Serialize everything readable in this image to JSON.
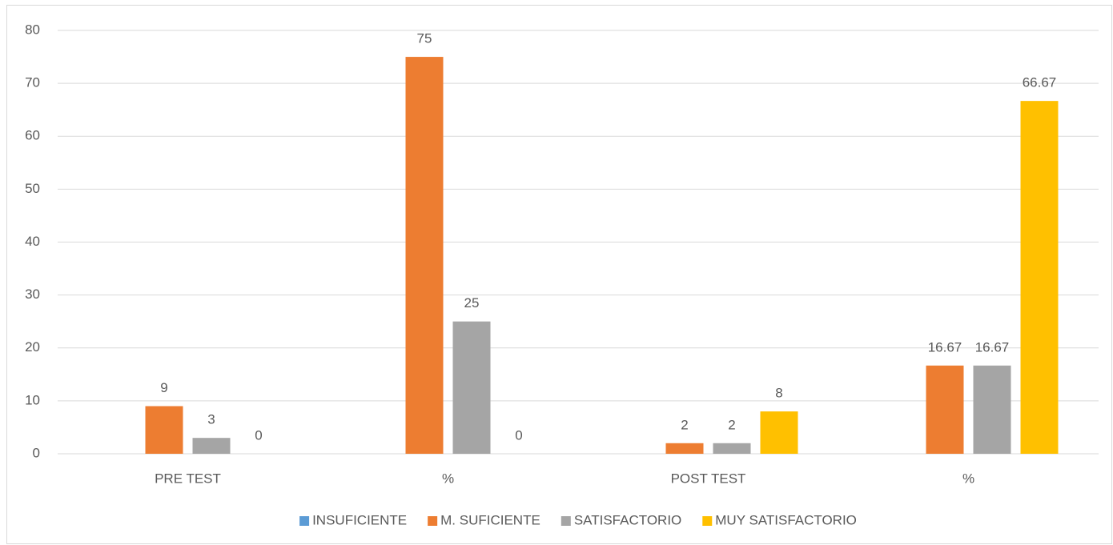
{
  "chart_data": {
    "type": "bar",
    "categories": [
      "PRE TEST",
      "%",
      "POST TEST",
      "%"
    ],
    "series": [
      {
        "name": "INSUFICIENTE",
        "color": "#5b9bd5",
        "values": [
          null,
          null,
          null,
          null
        ]
      },
      {
        "name": "M. SUFICIENTE",
        "color": "#ed7d31",
        "values": [
          9,
          75,
          2,
          16.67
        ]
      },
      {
        "name": "SATISFACTORIO",
        "color": "#a5a5a5",
        "values": [
          3,
          25,
          2,
          16.67
        ]
      },
      {
        "name": "MUY SATISFACTORIO",
        "color": "#ffc000",
        "values": [
          0,
          0,
          8,
          66.67
        ]
      }
    ],
    "ylim": [
      0,
      80
    ],
    "yticks": [
      0,
      10,
      20,
      30,
      40,
      50,
      60,
      70,
      80
    ],
    "grid": true,
    "legend": "bottom"
  }
}
